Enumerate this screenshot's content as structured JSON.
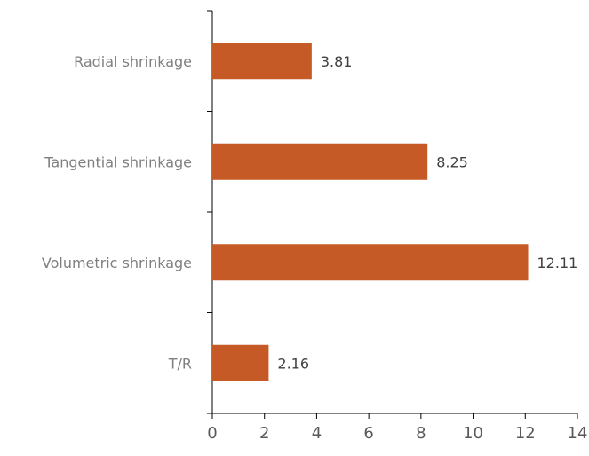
{
  "chart_data": {
    "type": "bar",
    "orientation": "horizontal",
    "categories": [
      "Radial shrinkage",
      "Tangential shrinkage",
      "Volumetric shrinkage",
      "T/R"
    ],
    "values": [
      3.81,
      8.25,
      12.11,
      2.16
    ],
    "value_labels": [
      "3.81",
      "8.25",
      "12.11",
      "2.16"
    ],
    "xlim": [
      0,
      14
    ],
    "xticks": [
      0,
      2,
      4,
      6,
      8,
      10,
      12,
      14
    ],
    "xtick_labels": [
      "0",
      "2",
      "4",
      "6",
      "8",
      "10",
      "12",
      "14"
    ],
    "title": "",
    "xlabel": "",
    "ylabel": "",
    "grid": false,
    "legend": "none",
    "bar_color": "#c55a27"
  }
}
